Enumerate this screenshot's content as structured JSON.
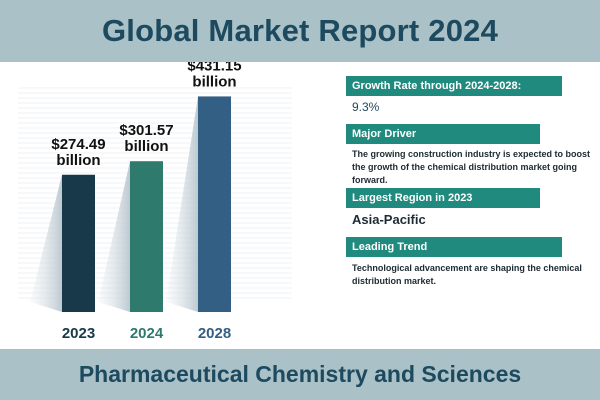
{
  "header": {
    "title": "Global Market Report 2024"
  },
  "footer": {
    "text": "Pharmaceutical Chemistry and Sciences"
  },
  "chart_data": {
    "type": "bar",
    "categories": [
      "2023",
      "2024",
      "2028"
    ],
    "values": [
      274.49,
      301.57,
      431.15
    ],
    "value_labels": [
      [
        "$274.49",
        "billion"
      ],
      [
        "$301.57",
        "billion"
      ],
      [
        "$431.15",
        "billion"
      ]
    ],
    "unit": "billion USD",
    "colors": [
      "#17394a",
      "#2e7a6d",
      "#335f84"
    ],
    "category_colors": [
      "#17394a",
      "#2e7a6d",
      "#335f84"
    ],
    "ylim": [
      0,
      460
    ]
  },
  "panel": {
    "growth": {
      "title": "Growth Rate through 2024-2028:",
      "value": "9.3%"
    },
    "driver": {
      "title": "Major Driver",
      "text": "The growing construction industry is expected to boost the growth of the chemical distribution market going forward."
    },
    "region": {
      "title": "Largest Region in 2023",
      "value": "Asia-Pacific"
    },
    "trend": {
      "title": "Leading Trend",
      "text": "Technological advancement are shaping the chemical distribution market."
    }
  }
}
